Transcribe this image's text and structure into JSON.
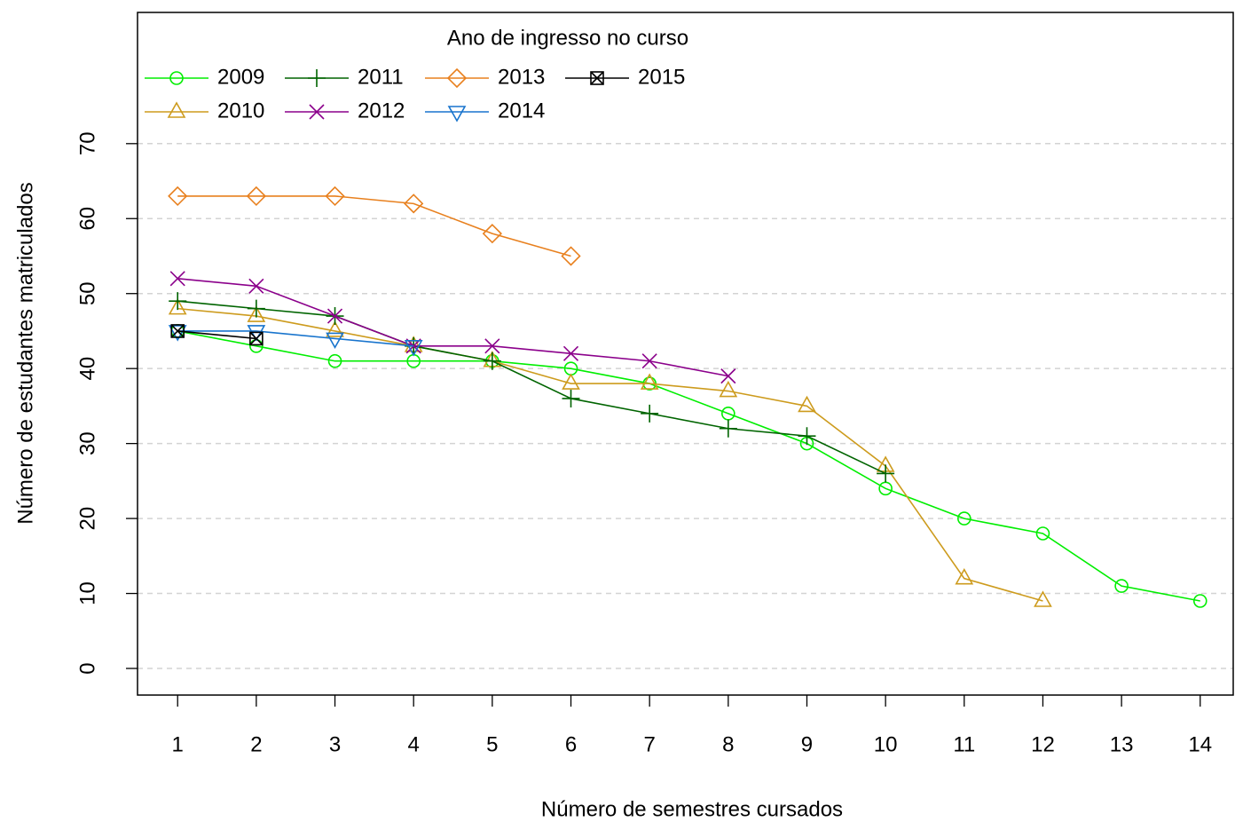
{
  "chart_data": {
    "type": "line",
    "x_label": "Número de semestres cursados",
    "y_label": "Número de estudantes matriculados",
    "legend_title": "Ano de ingresso no curso",
    "x": [
      1,
      2,
      3,
      4,
      5,
      6,
      7,
      8,
      9,
      10,
      11,
      12,
      13,
      14
    ],
    "series": [
      {
        "name": "2009",
        "color": "#00ee00",
        "marker": "circle",
        "values": [
          45,
          43,
          41,
          41,
          41,
          40,
          38,
          34,
          30,
          24,
          20,
          18,
          11,
          9
        ]
      },
      {
        "name": "2010",
        "color": "#cd9b1d",
        "marker": "triangle",
        "values": [
          48,
          47,
          45,
          43,
          41,
          38,
          38,
          37,
          35,
          27,
          12,
          9,
          null,
          null
        ]
      },
      {
        "name": "2011",
        "color": "#006400",
        "marker": "plus",
        "values": [
          49,
          48,
          47,
          43,
          41,
          36,
          34,
          32,
          31,
          26,
          null,
          null,
          null,
          null
        ]
      },
      {
        "name": "2012",
        "color": "#8b008b",
        "marker": "cross",
        "values": [
          52,
          51,
          47,
          43,
          43,
          42,
          41,
          39,
          null,
          null,
          null,
          null,
          null,
          null
        ]
      },
      {
        "name": "2013",
        "color": "#e8801e",
        "marker": "diamond",
        "values": [
          63,
          63,
          63,
          62,
          58,
          55,
          null,
          null,
          null,
          null,
          null,
          null,
          null,
          null
        ]
      },
      {
        "name": "2014",
        "color": "#1874cd",
        "marker": "triangle-down",
        "values": [
          45,
          45,
          44,
          43,
          null,
          null,
          null,
          null,
          null,
          null,
          null,
          null,
          null,
          null
        ]
      },
      {
        "name": "2015",
        "color": "#000000",
        "marker": "boxed-cross",
        "values": [
          45,
          44,
          null,
          null,
          null,
          null,
          null,
          null,
          null,
          null,
          null,
          null,
          null,
          null
        ]
      }
    ],
    "xlim": [
      0.49,
      14.42
    ],
    "ylim": [
      -3.55,
      87.5
    ],
    "xticks": [
      1,
      2,
      3,
      4,
      5,
      6,
      7,
      8,
      9,
      10,
      11,
      12,
      13,
      14
    ],
    "yticks": [
      0,
      10,
      20,
      30,
      40,
      50,
      60,
      70
    ],
    "grid": true
  }
}
